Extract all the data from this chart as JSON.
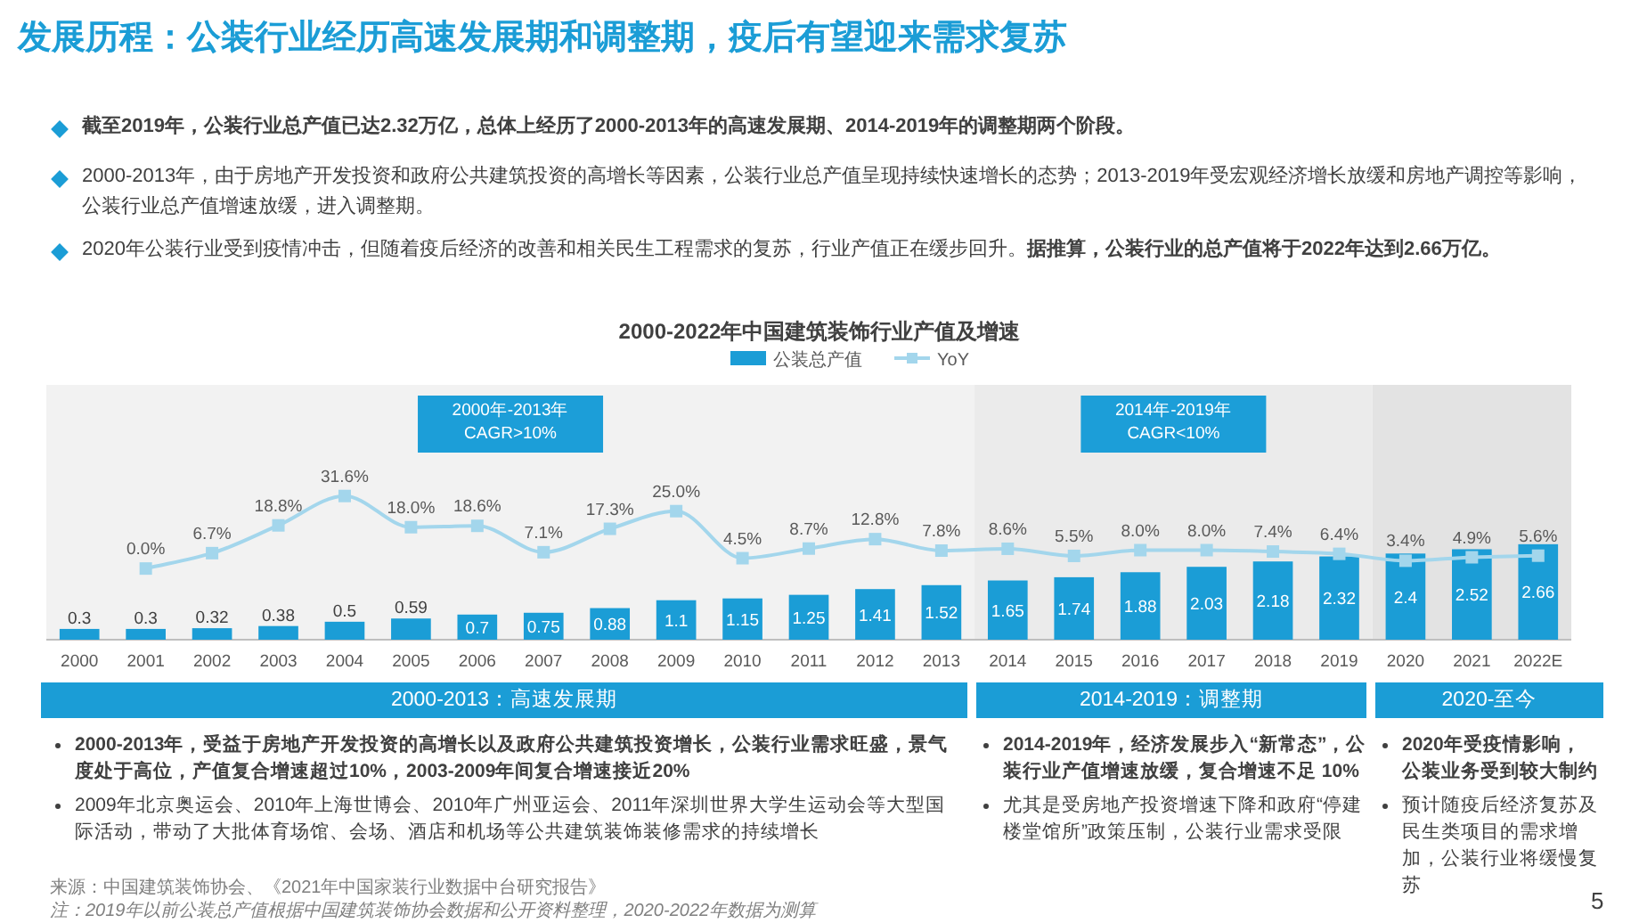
{
  "chart_data": {
    "type": "bar",
    "title": "发展历程：公装行业经历高速发展期和调整期，疫后有望迎来需求复苏",
    "subtitle": "2000-2022年中国建筑装饰行业产值及增速",
    "categories": [
      "2000",
      "2001",
      "2002",
      "2003",
      "2004",
      "2005",
      "2006",
      "2007",
      "2008",
      "2009",
      "2010",
      "2011",
      "2012",
      "2013",
      "2014",
      "2015",
      "2016",
      "2017",
      "2018",
      "2019",
      "2020",
      "2021",
      "2022E"
    ],
    "series": [
      {
        "name": "公装总产值",
        "color": "#1b9dd6",
        "values": [
          0.3,
          0.3,
          0.32,
          0.38,
          0.5,
          0.59,
          0.7,
          0.75,
          0.88,
          1.1,
          1.15,
          1.25,
          1.41,
          1.52,
          1.65,
          1.74,
          1.88,
          2.03,
          2.18,
          2.32,
          2.4,
          2.52,
          2.66
        ],
        "value_labels": [
          "0.3",
          "0.3",
          "0.32",
          "0.38",
          "0.5",
          "0.59",
          "0.7",
          "0.75",
          "0.88",
          "1.1",
          "1.15",
          "1.25",
          "1.41",
          "1.52",
          "1.65",
          "1.74",
          "1.88",
          "2.03",
          "2.18",
          "2.32",
          "2.4",
          "2.52",
          "2.66"
        ]
      },
      {
        "name": "YoY",
        "type": "line",
        "axis": "y2",
        "color": "#a3d6ec",
        "marker": "square",
        "values": [
          null,
          0.0,
          6.7,
          18.8,
          31.6,
          18.0,
          18.6,
          7.1,
          17.3,
          25.0,
          4.5,
          8.7,
          12.8,
          7.8,
          8.6,
          5.5,
          8.0,
          8.0,
          7.4,
          6.4,
          3.4,
          4.9,
          5.6
        ],
        "value_labels": [
          null,
          "0.0%",
          "6.7%",
          "18.8%",
          "31.6%",
          "18.0%",
          "18.6%",
          "7.1%",
          "17.3%",
          "25.0%",
          "4.5%",
          "8.7%",
          "12.8%",
          "7.8%",
          "8.6%",
          "5.5%",
          "8.0%",
          "8.0%",
          "7.4%",
          "6.4%",
          "3.4%",
          "4.9%",
          "5.6%"
        ]
      }
    ],
    "ylim": [
      0,
      7.1
    ],
    "y2lim": [
      -31,
      80
    ],
    "tick_labels": "x",
    "legend": "top",
    "bands": [
      {
        "axis": "x",
        "from": "2000",
        "to": "2013",
        "label": "2000年-2013年\nCAGR>10%",
        "color": "#f2f2f2"
      },
      {
        "axis": "x",
        "from": "2014",
        "to": "2019",
        "label": "2014年-2019年\nCAGR<10%",
        "color": "#ebebeb"
      },
      {
        "axis": "x",
        "from": "2020",
        "to": "2022E",
        "color": "#e3e3e3"
      }
    ],
    "annotations": [
      "截至2019年，公装行业总产值已达2.32万亿，总体上经历了2000-2013年的高速发展期、2014-2019年的调整期两个阶段。",
      "2000-2013年，由于房地产开发投资和政府公共建筑投资的高增长等因素，公装行业总产值呈现持续快速增长的态势；2013-2019年受宏观经济增长放缓和房地产调控等影响，公装行业总产值增速放缓，进入调整期。",
      "2020年公装行业受到疫情冲击，但随着疫后经济的改善和相关民生工程需求的复苏，行业产值正在缓步回升。",
      "据推算，公装行业的总产值将于2022年达到2.66万亿。",
      "2000-2013：高速发展期",
      "2014-2019：调整期",
      "2020-至今",
      "2000-2013年，受益于房地产开发投资的高增长以及政府公共建筑投资增长，公装行业需求旺盛，景气度处于高位，产值复合增速超过10%，2003-2009年间复合增速接近20%",
      "2009年北京奥运会、2010年上海世博会、2010年广州亚运会、2011年深圳世界大学生运动会等大型国际活动，带动了大批体育场馆、会场、酒店和机场等公共建筑装饰装修需求的持续增长",
      "2014-2019年，经济发展步入“新常态”，公装行业产值增速放缓，复合增速不足 10%",
      "尤其是受房地产投资增速下降和政府“停建楼堂馆所”政策压制，公装行业需求受限",
      "2020年受疫情影响，公装业务受到较大制约",
      "预计随疫后经济复苏及民生类项目的需求增加，公装行业将缓慢复苏",
      "来源：中国建筑装饰协会、《2021年中国家装行业数据中台研究报告》",
      "注：2019年以前公装总产值根据中国建筑装饰协会数据和公开资料整理，2020-2022年数据为测算",
      "5"
    ]
  }
}
